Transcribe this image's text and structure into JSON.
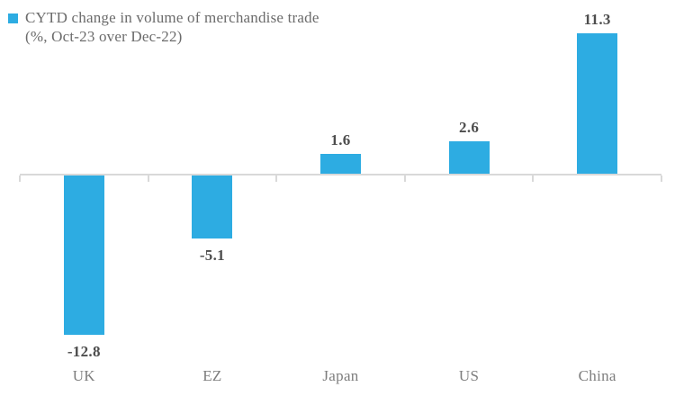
{
  "legend": {
    "label_line1": "CYTD change in volume of merchandise trade",
    "label_line2": "(%, Oct-23 over Dec-22)"
  },
  "chart_data": {
    "type": "bar",
    "title": "CYTD change in volume of merchandise trade (%, Oct-23 over Dec-22)",
    "series_name": "CYTD change in volume of merchandise trade (%, Oct-23 over Dec-22)",
    "categories": [
      "UK",
      "EZ",
      "Japan",
      "US",
      "China"
    ],
    "values": [
      -12.8,
      -5.1,
      1.6,
      2.6,
      11.3
    ],
    "value_labels": [
      "-12.8",
      "-5.1",
      "1.6",
      "2.6",
      "11.3"
    ],
    "xlabel": "",
    "ylabel": "",
    "ylim": [
      -14,
      12
    ],
    "grid": false,
    "legend_position": "top-left",
    "colors": {
      "bar": "#2DACE2",
      "axis": "#D9D9D9",
      "value_label": "#4D4D4D",
      "category_label": "#7D7D7D",
      "title": "#6B6B6B"
    }
  }
}
